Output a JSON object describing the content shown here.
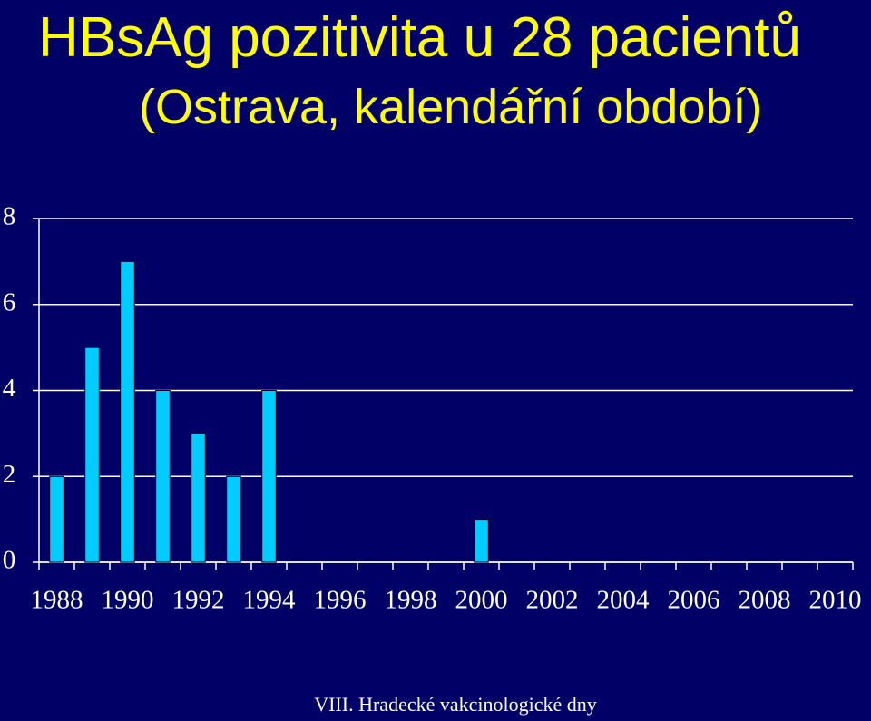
{
  "chart_data": {
    "type": "bar",
    "title": "HBsAg pozitivita u 28 pacientů",
    "subtitle": "(Ostrava, kalendářní období)",
    "footer": "VIII. Hradecké vakcinologické dny",
    "categories": [
      "1988",
      null,
      "1990",
      null,
      "1992",
      null,
      "1994",
      null,
      "1996",
      null,
      "1998",
      null,
      "2000",
      null,
      "2002",
      null,
      "2004",
      null,
      "2006",
      null,
      "2008",
      null,
      "2010"
    ],
    "values": [
      2,
      5,
      7,
      4,
      3,
      2,
      4,
      0,
      0,
      0,
      0,
      0,
      1,
      0,
      0,
      0,
      0,
      0,
      0,
      0,
      0,
      0,
      0
    ],
    "color": "#00ccff",
    "ylim": [
      0,
      8
    ],
    "yticks": [
      0,
      2,
      4,
      6,
      8
    ],
    "grid": true
  }
}
